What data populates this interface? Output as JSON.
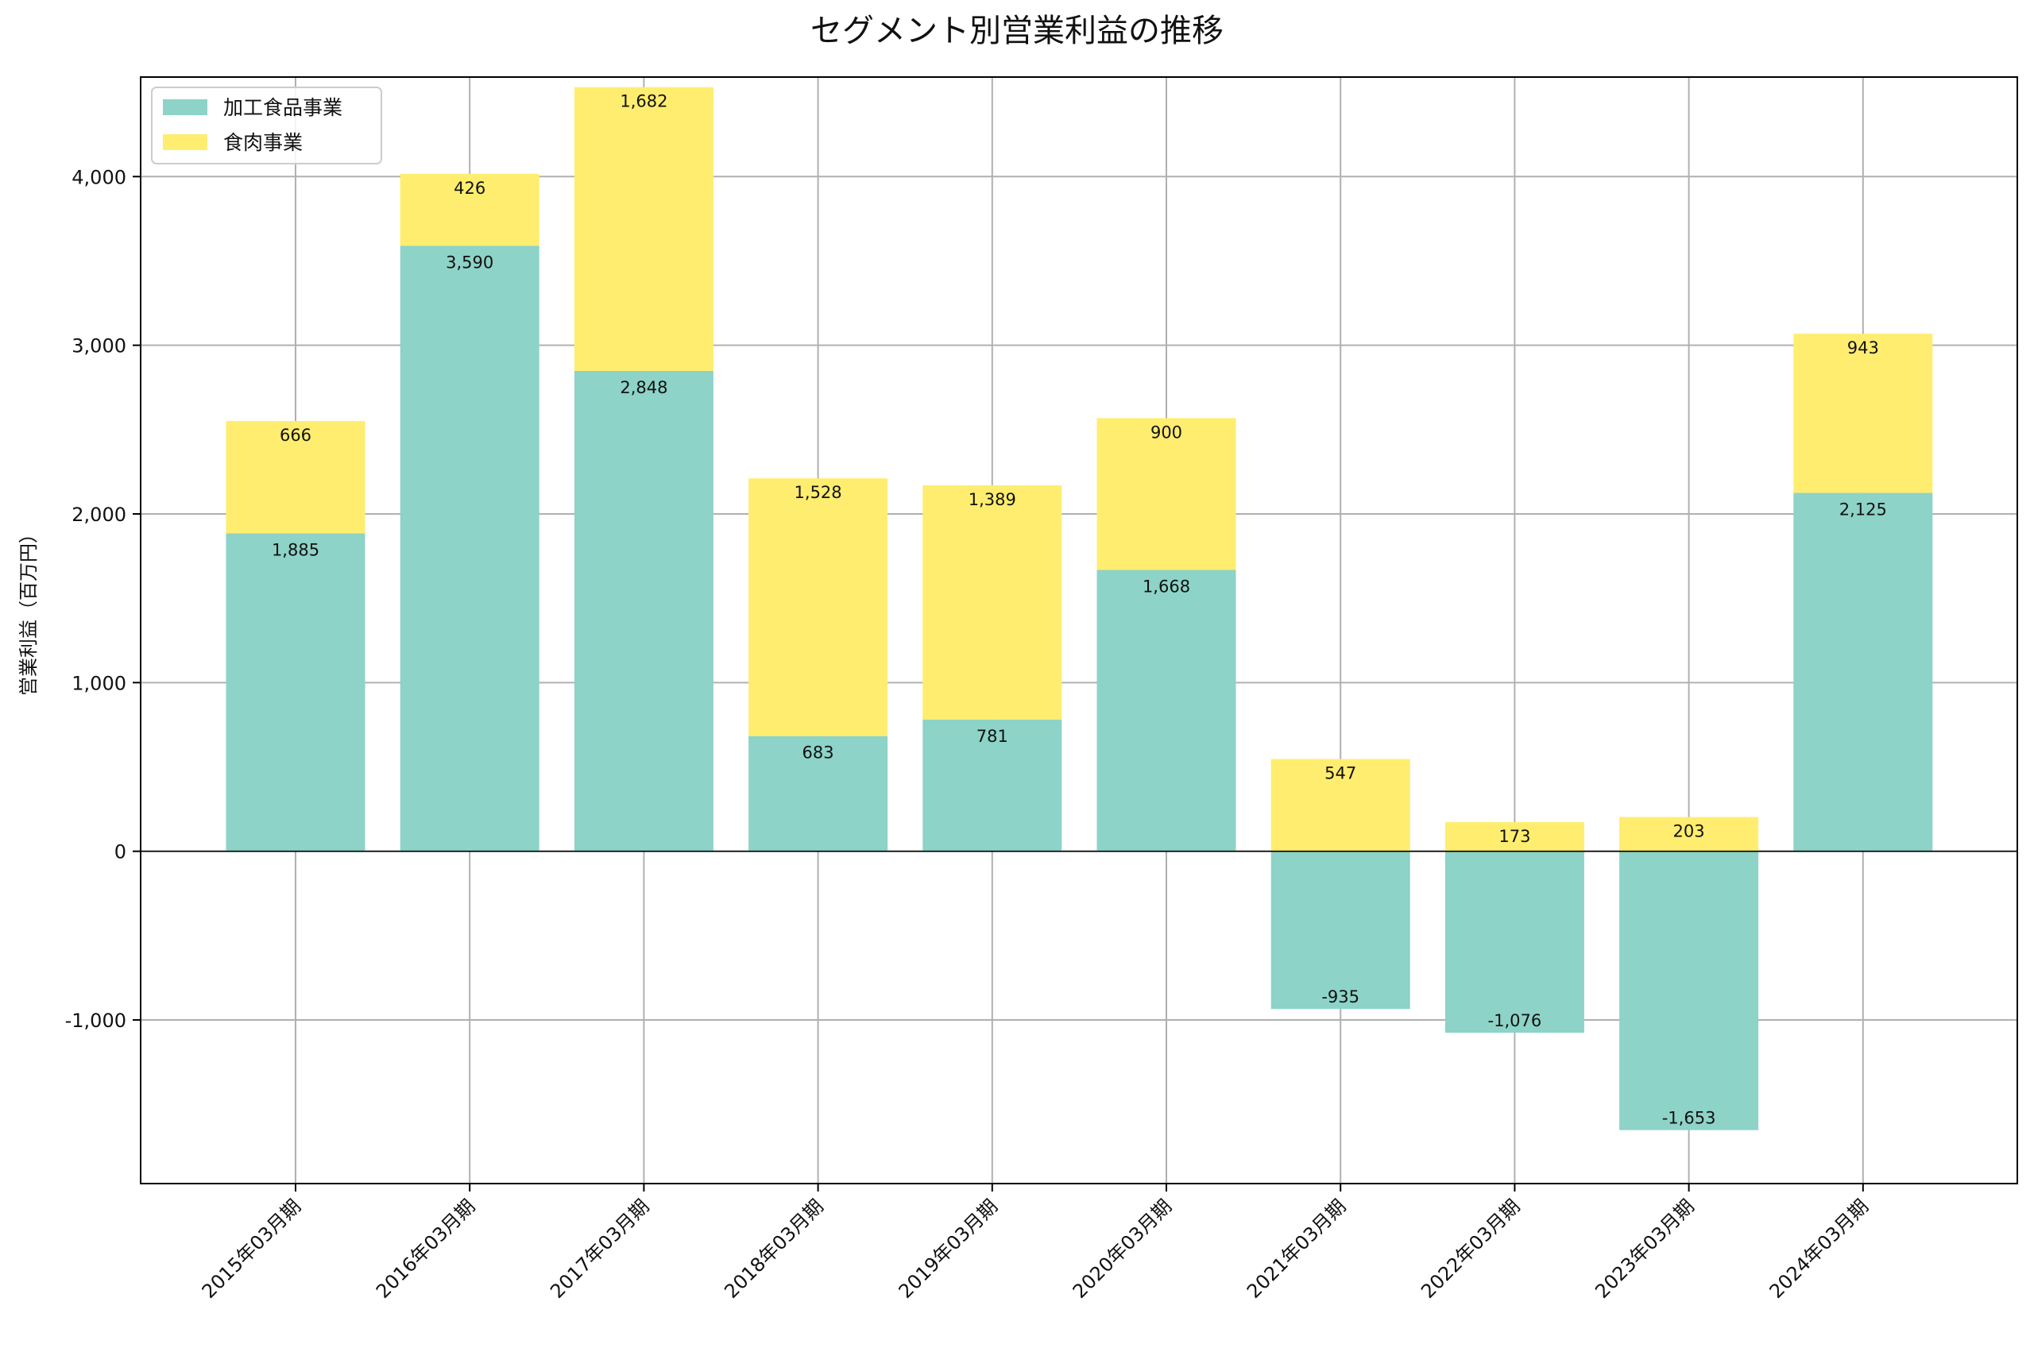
{
  "chart_data": {
    "type": "bar",
    "stacked": true,
    "title": "セグメント別営業利益の推移",
    "xlabel": "",
    "ylabel": "営業利益（百万円）",
    "ylim": [
      -1970,
      4590
    ],
    "yticks": [
      -1000,
      0,
      1000,
      2000,
      3000,
      4000
    ],
    "ytick_labels": [
      "-1,000",
      "0",
      "1,000",
      "2,000",
      "3,000",
      "4,000"
    ],
    "grid": true,
    "legend_position": "upper-left",
    "categories": [
      "2015年03月期",
      "2016年03月期",
      "2017年03月期",
      "2018年03月期",
      "2019年03月期",
      "2020年03月期",
      "2021年03月期",
      "2022年03月期",
      "2023年03月期",
      "2024年03月期"
    ],
    "series": [
      {
        "name": "加工食品事業",
        "color": "#8dd3c7",
        "values": [
          1885,
          3590,
          2848,
          683,
          781,
          1668,
          -935,
          -1076,
          -1653,
          2125
        ],
        "labels": [
          "1,885",
          "3,590",
          "2,848",
          "683",
          "781",
          "1,668",
          "-935",
          "-1,076",
          "-1,653",
          "2,125"
        ]
      },
      {
        "name": "食肉事業",
        "color": "#ffed6f",
        "values": [
          666,
          426,
          1682,
          1528,
          1389,
          900,
          547,
          173,
          203,
          943
        ],
        "labels": [
          "666",
          "426",
          "1,682",
          "1,528",
          "1,389",
          "900",
          "547",
          "173",
          "203",
          "943"
        ]
      }
    ]
  }
}
